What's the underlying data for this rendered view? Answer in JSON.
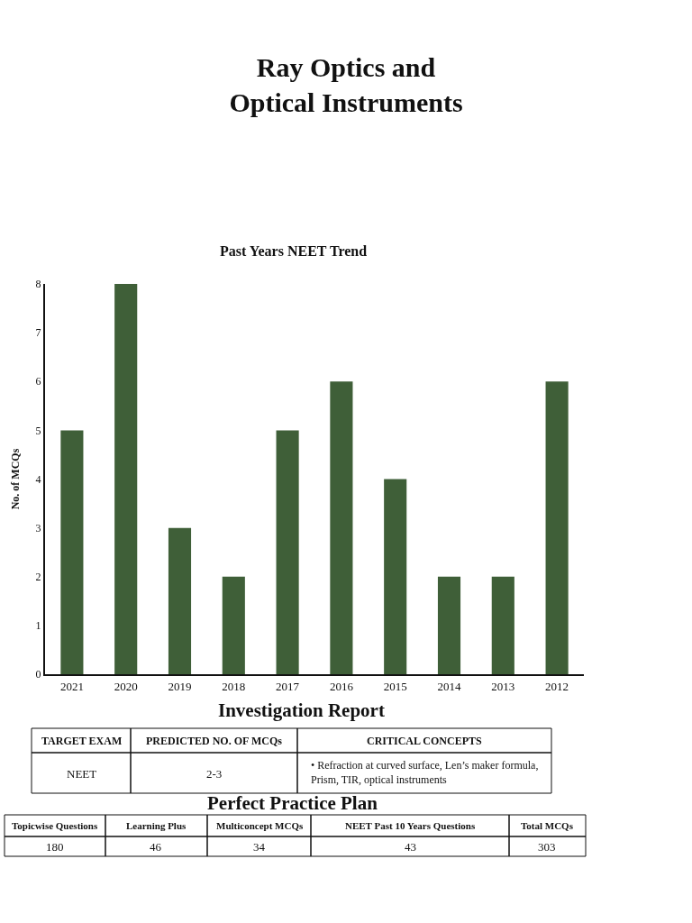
{
  "chart_data": {
    "type": "bar",
    "title": "Ray Optics and\nOptical Instruments",
    "subtitle": "Past Years NEET Trend",
    "ylabel": "No. of MCQs",
    "categories": [
      "2021",
      "2020",
      "2019",
      "2018",
      "2017",
      "2016",
      "2015",
      "2014",
      "2013",
      "2012"
    ],
    "values": [
      5,
      8,
      3,
      2,
      5,
      6,
      4,
      2,
      2,
      6
    ],
    "color": "#3f5f38",
    "ylim": [
      0,
      8
    ],
    "yticks": [
      0,
      1,
      2,
      3,
      4,
      5,
      6,
      7,
      8
    ],
    "annotations": [
      "Investigation Report",
      "TARGET EXAM",
      "PREDICTED NO. OF MCQs",
      "CRITICAL CONCEPTS",
      "NEET",
      "2-3",
      "• Refraction at curved surface, Len’s maker formula,\nPrism, TIR, optical instruments",
      "Perfect Practice Plan",
      "Topicwise Questions",
      "Learning Plus",
      "Multiconcept MCQs",
      "NEET Past 10 Years Questions",
      "Total MCQs",
      "180",
      "46",
      "34",
      "43",
      "303"
    ]
  }
}
